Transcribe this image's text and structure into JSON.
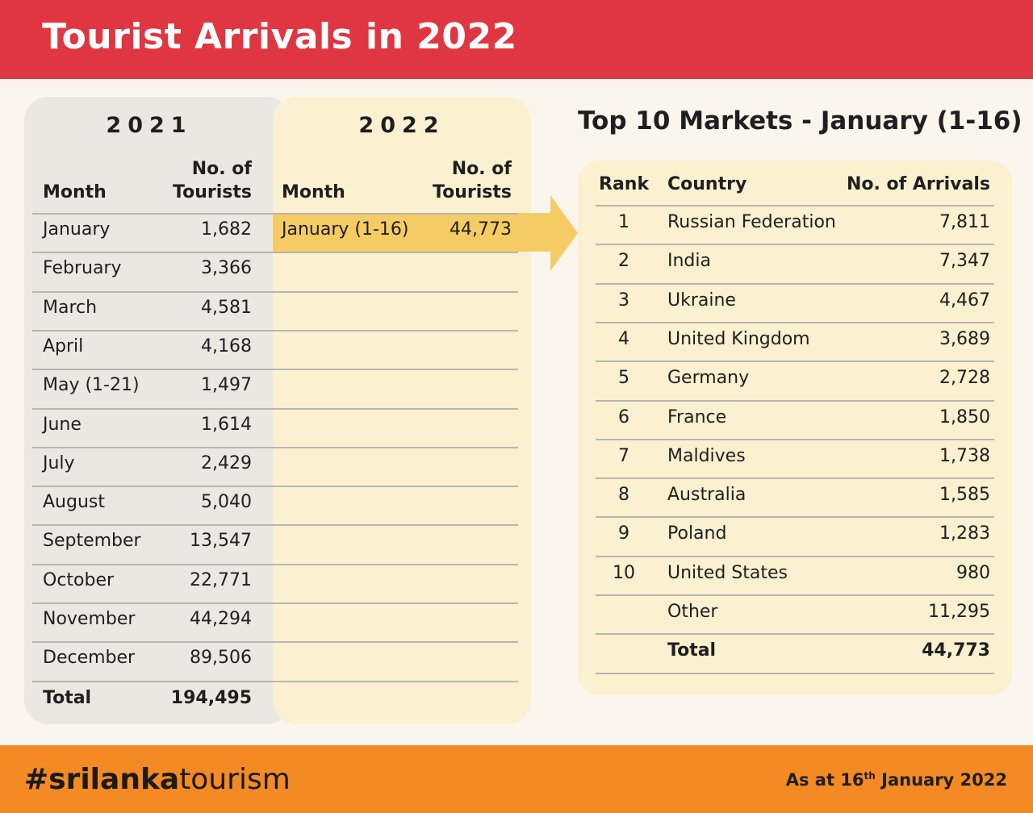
{
  "header": {
    "title": "Tourist Arrivals in 2022"
  },
  "chart_data": [
    {
      "type": "table",
      "title": "2021",
      "columns": [
        "Month",
        "No. of Tourists"
      ],
      "rows": [
        {
          "month": "January",
          "tourists": "1,682"
        },
        {
          "month": "February",
          "tourists": "3,366"
        },
        {
          "month": "March",
          "tourists": "4,581"
        },
        {
          "month": "April",
          "tourists": "4,168"
        },
        {
          "month": "May (1-21)",
          "tourists": "1,497"
        },
        {
          "month": "June",
          "tourists": "1,614"
        },
        {
          "month": "July",
          "tourists": "2,429"
        },
        {
          "month": "August",
          "tourists": "5,040"
        },
        {
          "month": "September",
          "tourists": "13,547"
        },
        {
          "month": "October",
          "tourists": "22,771"
        },
        {
          "month": "November",
          "tourists": "44,294"
        },
        {
          "month": "December",
          "tourists": "89,506"
        }
      ],
      "total": {
        "label": "Total",
        "value": "194,495"
      }
    },
    {
      "type": "table",
      "title": "2022",
      "columns": [
        "Month",
        "No. of Tourists"
      ],
      "rows": [
        {
          "month": "January (1-16)",
          "tourists": "44,773"
        }
      ]
    },
    {
      "type": "table",
      "title": "Top 10 Markets - January (1-16)",
      "columns": [
        "Rank",
        "Country",
        "No. of Arrivals"
      ],
      "rows": [
        {
          "rank": "1",
          "country": "Russian Federation",
          "arrivals": "7,811"
        },
        {
          "rank": "2",
          "country": "India",
          "arrivals": "7,347"
        },
        {
          "rank": "3",
          "country": "Ukraine",
          "arrivals": "4,467"
        },
        {
          "rank": "4",
          "country": "United Kingdom",
          "arrivals": "3,689"
        },
        {
          "rank": "5",
          "country": "Germany",
          "arrivals": "2,728"
        },
        {
          "rank": "6",
          "country": "France",
          "arrivals": "1,850"
        },
        {
          "rank": "7",
          "country": "Maldives",
          "arrivals": "1,738"
        },
        {
          "rank": "8",
          "country": "Australia",
          "arrivals": "1,585"
        },
        {
          "rank": "9",
          "country": "Poland",
          "arrivals": "1,283"
        },
        {
          "rank": "10",
          "country": "United States",
          "arrivals": "980"
        },
        {
          "rank": "",
          "country": "Other",
          "arrivals": "11,295"
        }
      ],
      "total": {
        "label": "Total",
        "value": "44,773"
      }
    }
  ],
  "footer": {
    "hashtag_bold": "#srilanka",
    "hashtag_rest": "tourism",
    "as_at_prefix": "As at 16",
    "as_at_sup": "th",
    "as_at_suffix": " January 2022"
  },
  "colors": {
    "header_bg": "#e03641",
    "footer_bg": "#f38a24",
    "highlight": "#f5cc63",
    "panel_2021": "#ebe8e3",
    "panel_2022": "#fbf0cf"
  }
}
